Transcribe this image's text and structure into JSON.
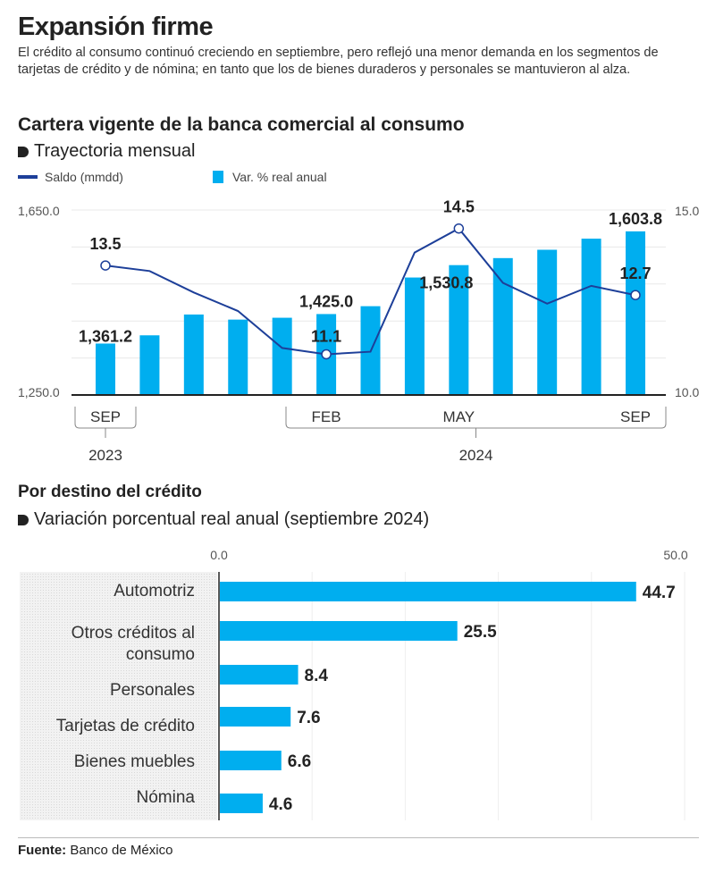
{
  "header": {
    "title": "Expansión firme",
    "subtitle": "El crédito al consumo continuó creciendo en septiembre, pero reflejó una menor demanda en  los segmentos de tarjetas de crédito y de nómina; en tanto que los de bienes duraderos y personales se mantuvieron al alza."
  },
  "chart_data": [
    {
      "type": "bar+line",
      "title": "Cartera vigente de la banca comercial al consumo",
      "subtitle": "Trayectoria mensual",
      "legend": {
        "placement": "top-left",
        "line_label": "Saldo (mmdd)",
        "bar_label": "Var. % real anual"
      },
      "colors": {
        "bar": "#00aeef",
        "line": "#1d3f99"
      },
      "x": [
        "2023-09",
        "2023-10",
        "2023-11",
        "2023-12",
        "2024-01",
        "2024-02",
        "2024-03",
        "2024-04",
        "2024-05",
        "2024-06",
        "2024-07",
        "2024-08",
        "2024-09"
      ],
      "month_labels": [
        {
          "index": 0,
          "label": "SEP"
        },
        {
          "index": 5,
          "label": "FEB"
        },
        {
          "index": 8,
          "label": "MAY"
        },
        {
          "index": 12,
          "label": "SEP"
        }
      ],
      "year_labels": [
        {
          "label": "2023",
          "from": 0,
          "to": 0
        },
        {
          "label": "2024",
          "from": 4,
          "to": 12
        }
      ],
      "bars": [
        1361.2,
        1379,
        1424,
        1413,
        1417,
        1425.0,
        1442,
        1504,
        1530.8,
        1546,
        1564,
        1588,
        1603.8
      ],
      "bar_data_labels": [
        {
          "index": 0,
          "text": "1,361.2"
        },
        {
          "index": 5,
          "text": "1,425.0"
        },
        {
          "index": 8,
          "text": "1,530.8"
        },
        {
          "index": 12,
          "text": "1,603.8"
        }
      ],
      "line": [
        13.5,
        13.35,
        12.77,
        12.27,
        11.27,
        11.1,
        11.17,
        13.85,
        14.5,
        13.03,
        12.47,
        12.95,
        12.7
      ],
      "line_data_labels": [
        {
          "index": 0,
          "text": "13.5"
        },
        {
          "index": 5,
          "text": "11.1"
        },
        {
          "index": 8,
          "text": "14.5"
        },
        {
          "index": 12,
          "text": "12.7"
        }
      ],
      "left_axis": {
        "range": [
          1250,
          1650
        ],
        "tick_labels": [
          "1,650.0",
          "1,250.0"
        ]
      },
      "right_axis": {
        "range": [
          10,
          15
        ],
        "tick_labels": [
          "15.0",
          "10.0"
        ]
      },
      "grid": true
    },
    {
      "type": "bar",
      "orientation": "horizontal",
      "title": "Por destino del crédito",
      "subtitle": "Variación porcentual real anual (septiembre 2024)",
      "categories": [
        "Automotriz",
        "Otros créditos al consumo",
        "Personales",
        "Tarjetas de crédito",
        "Bienes muebles",
        "Nómina"
      ],
      "category_lines": [
        [
          "Automotriz"
        ],
        [
          "Otros créditos al",
          "consumo"
        ],
        [
          "Personales"
        ],
        [
          "Tarjetas de crédito"
        ],
        [
          "Bienes muebles"
        ],
        [
          "Nómina"
        ]
      ],
      "values": [
        44.7,
        25.5,
        8.4,
        7.6,
        6.6,
        4.6
      ],
      "value_labels": [
        "44.7",
        "25.5",
        "8.4",
        "7.6",
        "6.6",
        "4.6"
      ],
      "xlim": [
        0,
        50
      ],
      "tick_labels": [
        "0.0",
        "50.0"
      ],
      "color": "#00aeef",
      "grid": true
    }
  ],
  "footer": {
    "source_label": "Fuente:",
    "source": "Banco de México"
  }
}
